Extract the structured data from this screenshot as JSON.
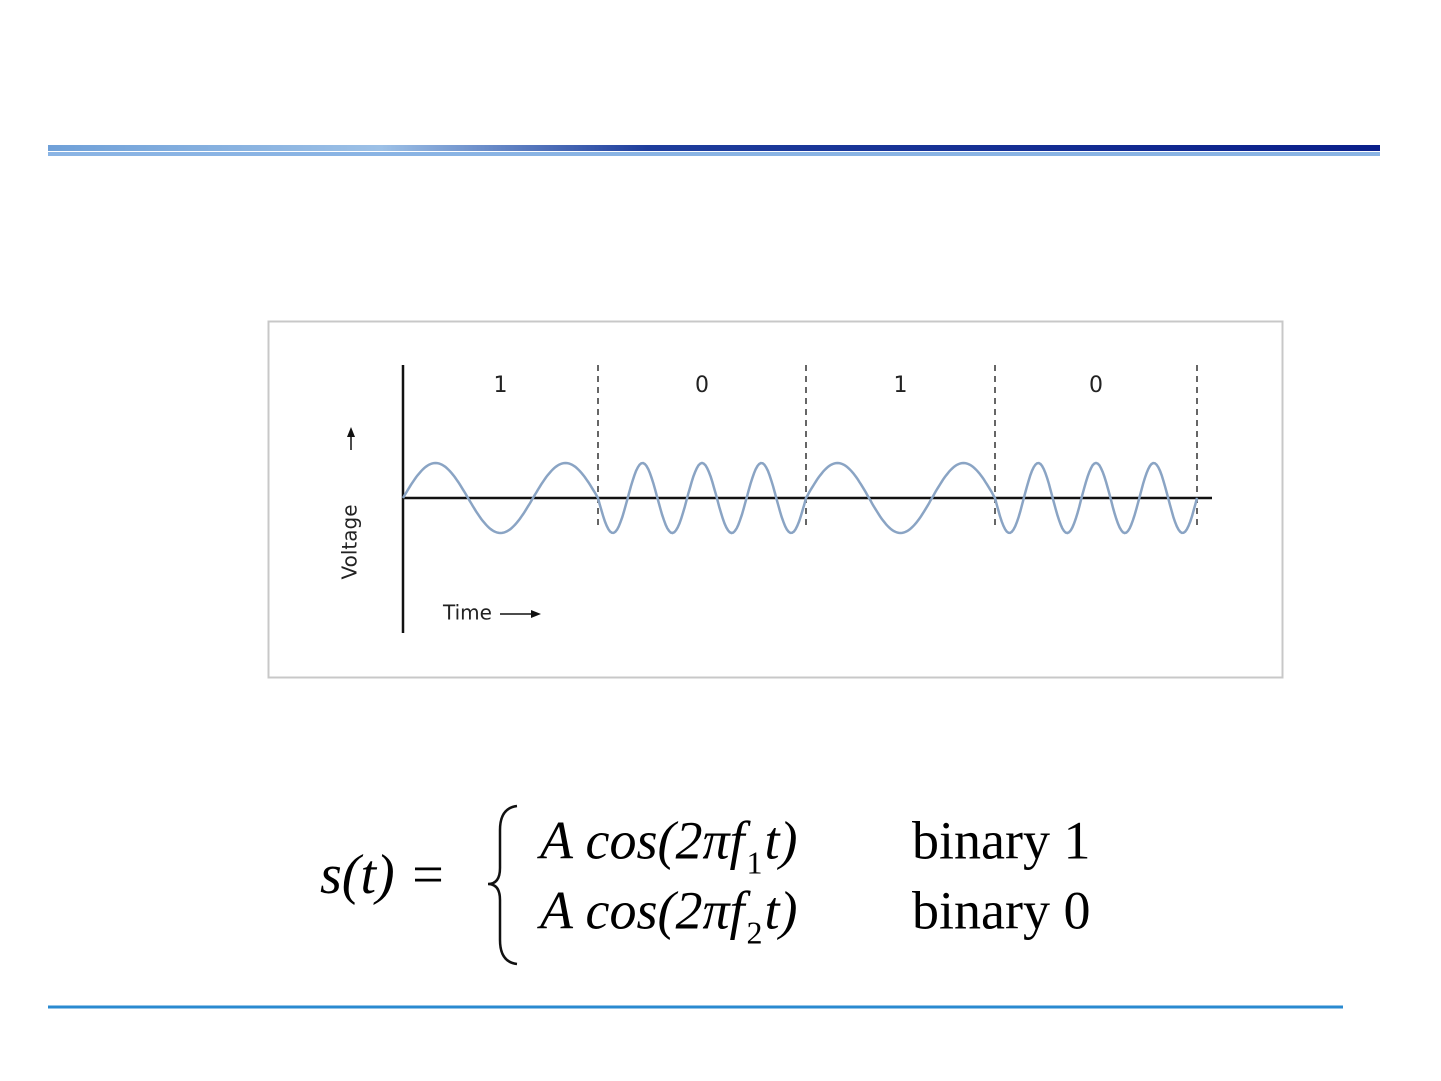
{
  "diagram": {
    "bits": [
      "1",
      "0",
      "1",
      "0"
    ],
    "y_axis_label": "Voltage",
    "x_axis_label": "Time"
  },
  "formula": {
    "lhs": "s(t) =",
    "cases": [
      {
        "expression": "A cos(2πf",
        "subscript": "1",
        "tail": "t)",
        "condition": "binary 1"
      },
      {
        "expression": "A cos(2πf",
        "subscript": "2",
        "tail": "t)",
        "condition": "binary 0"
      }
    ]
  }
}
